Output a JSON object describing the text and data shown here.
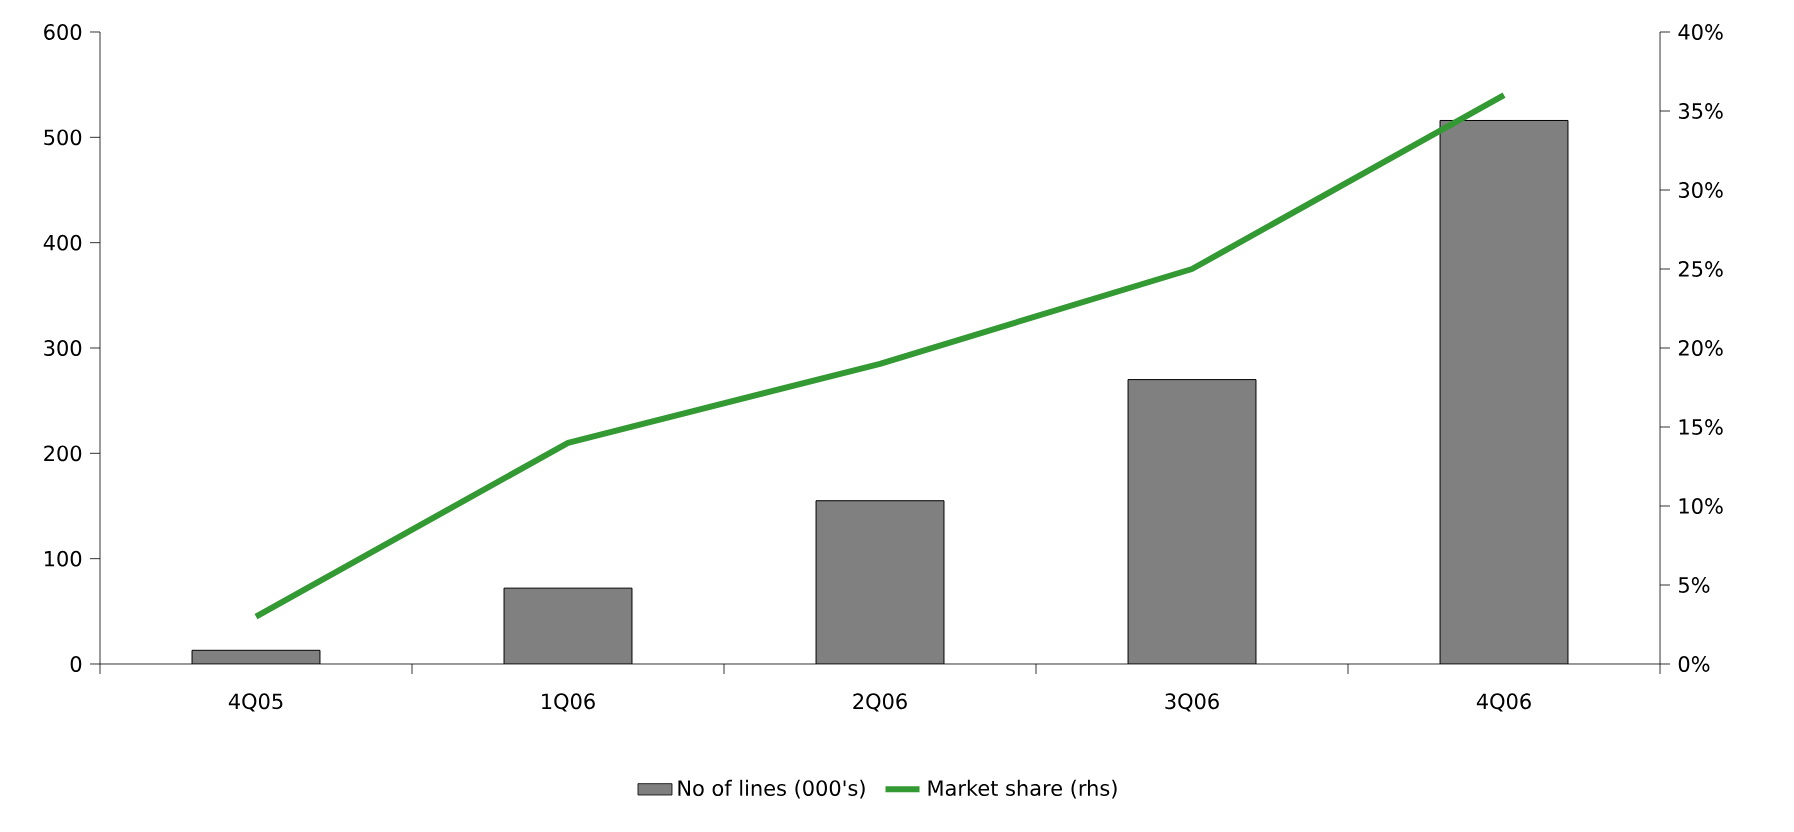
{
  "chart_data": {
    "type": "bar",
    "categories": [
      "4Q05",
      "1Q06",
      "2Q06",
      "3Q06",
      "4Q06"
    ],
    "series": [
      {
        "name": "No of lines (000's)",
        "color": "#808080",
        "values": [
          13,
          72,
          155,
          270,
          516
        ]
      },
      {
        "name": "Market share (rhs)",
        "type": "line",
        "axis": "y2",
        "color": "#339933",
        "values": [
          3,
          14,
          19,
          25,
          36
        ]
      }
    ],
    "ylim": [
      0,
      600
    ],
    "yticks": [
      0,
      100,
      200,
      300,
      400,
      500,
      600
    ],
    "y2lim": [
      0,
      40
    ],
    "y2ticks": [
      {
        "value": 0,
        "label": "0%"
      },
      {
        "value": 5,
        "label": "5%"
      },
      {
        "value": 10,
        "label": "10%"
      },
      {
        "value": 15,
        "label": "15%"
      },
      {
        "value": 20,
        "label": "20%"
      },
      {
        "value": 25,
        "label": "25%"
      },
      {
        "value": 30,
        "label": "30%"
      },
      {
        "value": 35,
        "label": "35%"
      },
      {
        "value": 40,
        "label": "40%"
      }
    ],
    "legend": "bottom"
  }
}
